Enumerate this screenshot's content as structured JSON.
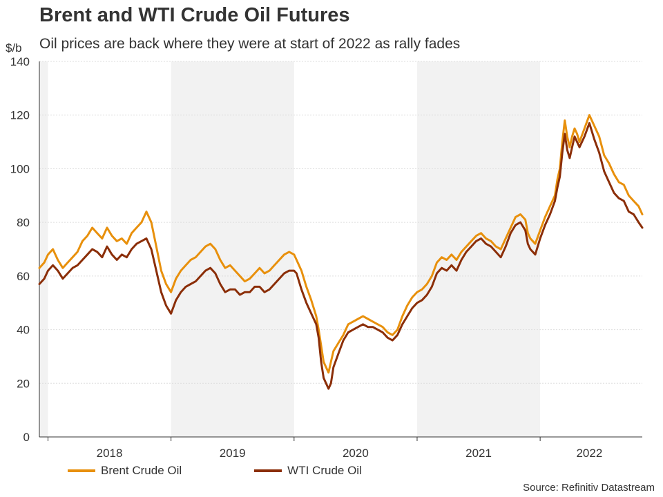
{
  "chart_data": {
    "type": "line",
    "title": "Brent and WTI Crude Oil Futures",
    "subtitle": "Oil prices are back where they were at start of 2022 as rally fades",
    "ylabel": "$/b",
    "ylim": [
      0,
      140
    ],
    "yticks": [
      0,
      20,
      40,
      60,
      80,
      100,
      120,
      140
    ],
    "xlim": [
      2017.93,
      2022.83
    ],
    "year_labels": [
      {
        "label": "2018",
        "center": 2018.5
      },
      {
        "label": "2019",
        "center": 2019.5
      },
      {
        "label": "2020",
        "center": 2020.5
      },
      {
        "label": "2021",
        "center": 2021.5
      },
      {
        "label": "2022",
        "center": 2022.4
      }
    ],
    "year_boundaries": [
      2018,
      2019,
      2020,
      2021,
      2022
    ],
    "shaded_years": [
      [
        2017.93,
        2018
      ],
      [
        2019,
        2020
      ],
      [
        2021,
        2022
      ]
    ],
    "source": "Source: Refinitiv Datastream",
    "colors": {
      "brent": "#E8900C",
      "wti": "#8B2E08",
      "band": "#F2F2F2",
      "grid": "#DDDDDD",
      "axis": "#333333"
    },
    "series": [
      {
        "name": "Brent Crude Oil",
        "key": "brent",
        "x": [
          2017.93,
          2017.97,
          2018.0,
          2018.04,
          2018.08,
          2018.12,
          2018.16,
          2018.2,
          2018.24,
          2018.28,
          2018.32,
          2018.36,
          2018.4,
          2018.44,
          2018.48,
          2018.52,
          2018.56,
          2018.6,
          2018.64,
          2018.68,
          2018.72,
          2018.76,
          2018.8,
          2018.84,
          2018.88,
          2018.92,
          2018.96,
          2019.0,
          2019.04,
          2019.08,
          2019.12,
          2019.16,
          2019.2,
          2019.24,
          2019.28,
          2019.32,
          2019.36,
          2019.4,
          2019.44,
          2019.48,
          2019.52,
          2019.56,
          2019.6,
          2019.64,
          2019.68,
          2019.72,
          2019.76,
          2019.8,
          2019.84,
          2019.88,
          2019.92,
          2019.96,
          2020.0,
          2020.02,
          2020.06,
          2020.1,
          2020.14,
          2020.18,
          2020.2,
          2020.22,
          2020.24,
          2020.26,
          2020.28,
          2020.3,
          2020.32,
          2020.36,
          2020.4,
          2020.44,
          2020.48,
          2020.52,
          2020.56,
          2020.6,
          2020.64,
          2020.68,
          2020.72,
          2020.76,
          2020.8,
          2020.84,
          2020.88,
          2020.92,
          2020.96,
          2021.0,
          2021.04,
          2021.08,
          2021.12,
          2021.16,
          2021.2,
          2021.24,
          2021.28,
          2021.32,
          2021.36,
          2021.4,
          2021.44,
          2021.48,
          2021.52,
          2021.56,
          2021.6,
          2021.64,
          2021.68,
          2021.72,
          2021.76,
          2021.8,
          2021.84,
          2021.88,
          2021.9,
          2021.92,
          2021.96,
          2022.0,
          2022.04,
          2022.08,
          2022.12,
          2022.14,
          2022.16,
          2022.18,
          2022.2,
          2022.22,
          2022.24,
          2022.26,
          2022.28,
          2022.3,
          2022.32,
          2022.36,
          2022.4,
          2022.44,
          2022.48,
          2022.52,
          2022.56,
          2022.6,
          2022.64,
          2022.68,
          2022.72,
          2022.76,
          2022.8,
          2022.83
        ],
        "values": [
          63,
          65,
          68,
          70,
          66,
          63,
          65,
          67,
          69,
          73,
          75,
          78,
          76,
          74,
          78,
          75,
          73,
          74,
          72,
          76,
          78,
          80,
          84,
          80,
          71,
          62,
          57,
          54,
          59,
          62,
          64,
          66,
          67,
          69,
          71,
          72,
          70,
          66,
          63,
          64,
          62,
          60,
          58,
          59,
          61,
          63,
          61,
          62,
          64,
          66,
          68,
          69,
          68,
          66,
          62,
          56,
          51,
          45,
          40,
          34,
          28,
          26,
          24,
          28,
          32,
          35,
          38,
          42,
          43,
          44,
          45,
          44,
          43,
          42,
          41,
          39,
          38,
          40,
          45,
          49,
          52,
          54,
          55,
          57,
          60,
          65,
          67,
          66,
          68,
          66,
          69,
          71,
          73,
          75,
          76,
          74,
          73,
          71,
          70,
          74,
          78,
          82,
          83,
          81,
          76,
          74,
          72,
          77,
          82,
          86,
          90,
          96,
          100,
          110,
          118,
          112,
          108,
          112,
          115,
          113,
          110,
          115,
          120,
          116,
          112,
          105,
          102,
          98,
          95,
          94,
          90,
          88,
          86,
          83
        ]
      },
      {
        "name": "WTI Crude Oil",
        "key": "wti",
        "x": [
          2017.93,
          2017.97,
          2018.0,
          2018.04,
          2018.08,
          2018.12,
          2018.16,
          2018.2,
          2018.24,
          2018.28,
          2018.32,
          2018.36,
          2018.4,
          2018.44,
          2018.48,
          2018.52,
          2018.56,
          2018.6,
          2018.64,
          2018.68,
          2018.72,
          2018.76,
          2018.8,
          2018.84,
          2018.88,
          2018.92,
          2018.96,
          2019.0,
          2019.04,
          2019.08,
          2019.12,
          2019.16,
          2019.2,
          2019.24,
          2019.28,
          2019.32,
          2019.36,
          2019.4,
          2019.44,
          2019.48,
          2019.52,
          2019.56,
          2019.6,
          2019.64,
          2019.68,
          2019.72,
          2019.76,
          2019.8,
          2019.84,
          2019.88,
          2019.92,
          2019.96,
          2020.0,
          2020.02,
          2020.06,
          2020.1,
          2020.14,
          2020.18,
          2020.2,
          2020.22,
          2020.24,
          2020.26,
          2020.28,
          2020.3,
          2020.32,
          2020.36,
          2020.4,
          2020.44,
          2020.48,
          2020.52,
          2020.56,
          2020.6,
          2020.64,
          2020.68,
          2020.72,
          2020.76,
          2020.8,
          2020.84,
          2020.88,
          2020.92,
          2020.96,
          2021.0,
          2021.04,
          2021.08,
          2021.12,
          2021.16,
          2021.2,
          2021.24,
          2021.28,
          2021.32,
          2021.36,
          2021.4,
          2021.44,
          2021.48,
          2021.52,
          2021.56,
          2021.6,
          2021.64,
          2021.68,
          2021.72,
          2021.76,
          2021.8,
          2021.84,
          2021.88,
          2021.9,
          2021.92,
          2021.96,
          2022.0,
          2022.04,
          2022.08,
          2022.12,
          2022.14,
          2022.16,
          2022.18,
          2022.2,
          2022.22,
          2022.24,
          2022.26,
          2022.28,
          2022.3,
          2022.32,
          2022.36,
          2022.4,
          2022.44,
          2022.48,
          2022.52,
          2022.56,
          2022.6,
          2022.64,
          2022.68,
          2022.72,
          2022.76,
          2022.8,
          2022.83
        ],
        "values": [
          57,
          59,
          62,
          64,
          62,
          59,
          61,
          63,
          64,
          66,
          68,
          70,
          69,
          67,
          71,
          68,
          66,
          68,
          67,
          70,
          72,
          73,
          74,
          70,
          62,
          54,
          49,
          46,
          51,
          54,
          56,
          57,
          58,
          60,
          62,
          63,
          61,
          57,
          54,
          55,
          55,
          53,
          54,
          54,
          56,
          56,
          54,
          55,
          57,
          59,
          61,
          62,
          62,
          61,
          55,
          50,
          46,
          42,
          37,
          28,
          22,
          20,
          18,
          20,
          26,
          31,
          36,
          39,
          40,
          41,
          42,
          41,
          41,
          40,
          39,
          37,
          36,
          38,
          42,
          45,
          48,
          50,
          51,
          53,
          56,
          61,
          63,
          62,
          64,
          62,
          66,
          69,
          71,
          73,
          74,
          72,
          71,
          69,
          67,
          71,
          76,
          79,
          80,
          77,
          72,
          70,
          68,
          74,
          79,
          83,
          88,
          93,
          97,
          106,
          113,
          107,
          104,
          108,
          112,
          110,
          108,
          112,
          117,
          111,
          106,
          99,
          95,
          91,
          89,
          88,
          84,
          83,
          80,
          78
        ]
      }
    ]
  },
  "footer": {
    "source": "Source: Refinitiv Datastream"
  }
}
